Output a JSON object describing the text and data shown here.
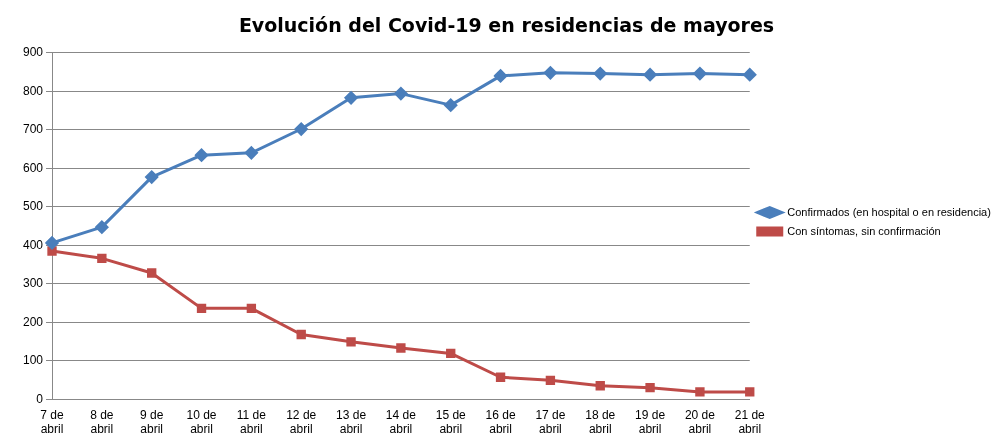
{
  "chart_data": {
    "type": "line",
    "title": "Evolución del Covid-19 en residencias de mayores",
    "categories": [
      "7 de abril",
      "8 de abril",
      "9 de abril",
      "10 de abril",
      "11 de abril",
      "12 de abril",
      "13 de abril",
      "14 de abril",
      "15 de abril",
      "16 de abril",
      "17 de abril",
      "18 de abril",
      "19 de abril",
      "20 de abril",
      "21 de abril"
    ],
    "series": [
      {
        "name": "Confirmados (en hospital o en residencia)",
        "color": "#4a7ebb",
        "marker": "diamond",
        "values": [
          406,
          447,
          577,
          634,
          640,
          702,
          783,
          794,
          764,
          840,
          848,
          846,
          843,
          846,
          843
        ]
      },
      {
        "name": "Con síntomas, sin confirmación",
        "color": "#be4b48",
        "marker": "square",
        "values": [
          385,
          366,
          328,
          236,
          236,
          168,
          149,
          133,
          119,
          57,
          49,
          35,
          30,
          19,
          19
        ]
      }
    ],
    "ylim": [
      0,
      900
    ],
    "yticks": [
      0,
      100,
      200,
      300,
      400,
      500,
      600,
      700,
      800,
      900
    ],
    "grid": "y",
    "legend": "right",
    "line_style": "solid"
  }
}
